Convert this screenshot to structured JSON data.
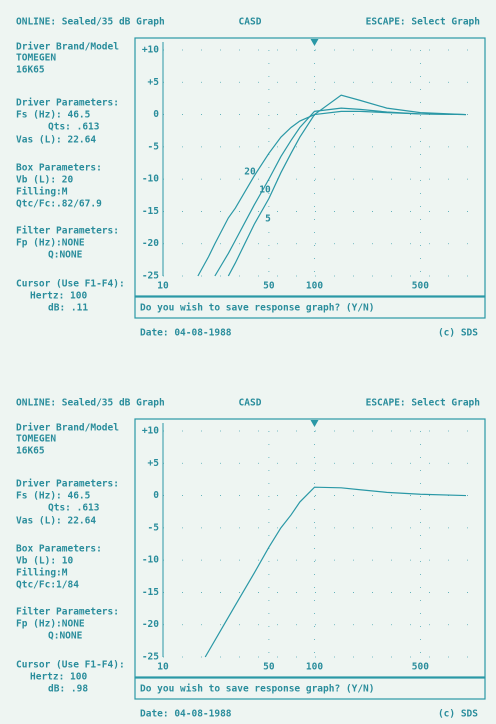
{
  "screens": [
    {
      "header": {
        "left": "ONLINE: Sealed/35 dB Graph",
        "center": "CASD",
        "right": "ESCAPE: Select Graph"
      },
      "panel": [
        "Driver Brand/Model",
        "TOMEGEN",
        "16K65",
        "Driver Parameters:",
        "Fs (Hz): 46.5",
        "Qts: .613",
        "Vas (L): 22.64",
        "Box Parameters:",
        "Vb (L): 20",
        "Filling:M",
        "Qtc/Fc:.82/67.9",
        "Filter Parameters:",
        "Fp (Hz):NONE",
        "Q:NONE",
        "Cursor (Use F1-F4):",
        "Hertz: 100",
        "dB: .11"
      ],
      "prompt": "Do you wish to save response graph? (Y/N)",
      "date": "Date: 04-08-1988",
      "copyright": "(c) SDS"
    },
    {
      "header": {
        "left": "ONLINE: Sealed/35 dB Graph",
        "center": "CASD",
        "right": "ESCAPE: Select Graph"
      },
      "panel": [
        "Driver Brand/Model",
        "TOMEGEN",
        "16K65",
        "Driver Parameters:",
        "Fs (Hz): 46.5",
        "Qts: .613",
        "Vas (L): 22.64",
        "Box Parameters:",
        "Vb (L): 10",
        "Filling:M",
        "Qtc/Fc:1/84",
        "Filter Parameters:",
        "Fp (Hz):NONE",
        "Q:NONE",
        "Cursor (Use F1-F4):",
        "Hertz: 100",
        "dB: .98"
      ],
      "prompt": "Do you wish to save response graph? (Y/N)",
      "date": "Date: 04-08-1988",
      "copyright": "(c) SDS"
    }
  ],
  "chart_data": [
    {
      "type": "line",
      "xlog": true,
      "xlim": [
        10,
        1200
      ],
      "ylim": [
        -25,
        10
      ],
      "xticks": [
        10,
        50,
        100,
        500
      ],
      "yticks": [
        {
          "value": 10,
          "label": "+10"
        },
        {
          "value": 5,
          "label": "+5"
        },
        0,
        -5,
        -10,
        -15,
        -20,
        -25
      ],
      "grid": true,
      "cursor": 100,
      "color": "#2a98a6",
      "x": [
        17,
        20,
        22,
        27,
        30,
        40,
        50,
        60,
        70,
        80,
        100,
        150,
        200,
        300,
        500,
        1000
      ],
      "series": [
        {
          "name": "20",
          "values": [
            -25,
            -22,
            -20,
            -16,
            -14.5,
            -9.5,
            -6,
            -3.5,
            -2,
            -1,
            0,
            0.5,
            0.5,
            0.3,
            0.1,
            0
          ]
        },
        {
          "name": "10",
          "values": [
            null,
            null,
            -25,
            -21.5,
            -19.5,
            -14,
            -10,
            -6.5,
            -4,
            -2,
            0.5,
            1,
            0.8,
            0.4,
            0.1,
            0
          ]
        },
        {
          "name": "5",
          "values": [
            null,
            null,
            null,
            -25,
            -23,
            -17,
            -13,
            -9,
            -6,
            -3.5,
            0,
            3,
            2.2,
            1,
            0.3,
            0
          ]
        }
      ]
    },
    {
      "type": "line",
      "xlog": true,
      "xlim": [
        10,
        1200
      ],
      "ylim": [
        -25,
        10
      ],
      "xticks": [
        10,
        50,
        100,
        500
      ],
      "yticks": [
        {
          "value": 10,
          "label": "+10"
        },
        {
          "value": 5,
          "label": "+5"
        },
        0,
        -5,
        -10,
        -15,
        -20,
        -25
      ],
      "grid": true,
      "cursor": 100,
      "color": "#2a98a6",
      "x": [
        19,
        30,
        40,
        50,
        60,
        70,
        80,
        100,
        150,
        200,
        300,
        500,
        1000
      ],
      "series": [
        {
          "values": [
            -25,
            -17,
            -12,
            -8,
            -5,
            -3,
            -1,
            1.3,
            1.2,
            0.9,
            0.5,
            0.2,
            0
          ]
        }
      ]
    }
  ]
}
